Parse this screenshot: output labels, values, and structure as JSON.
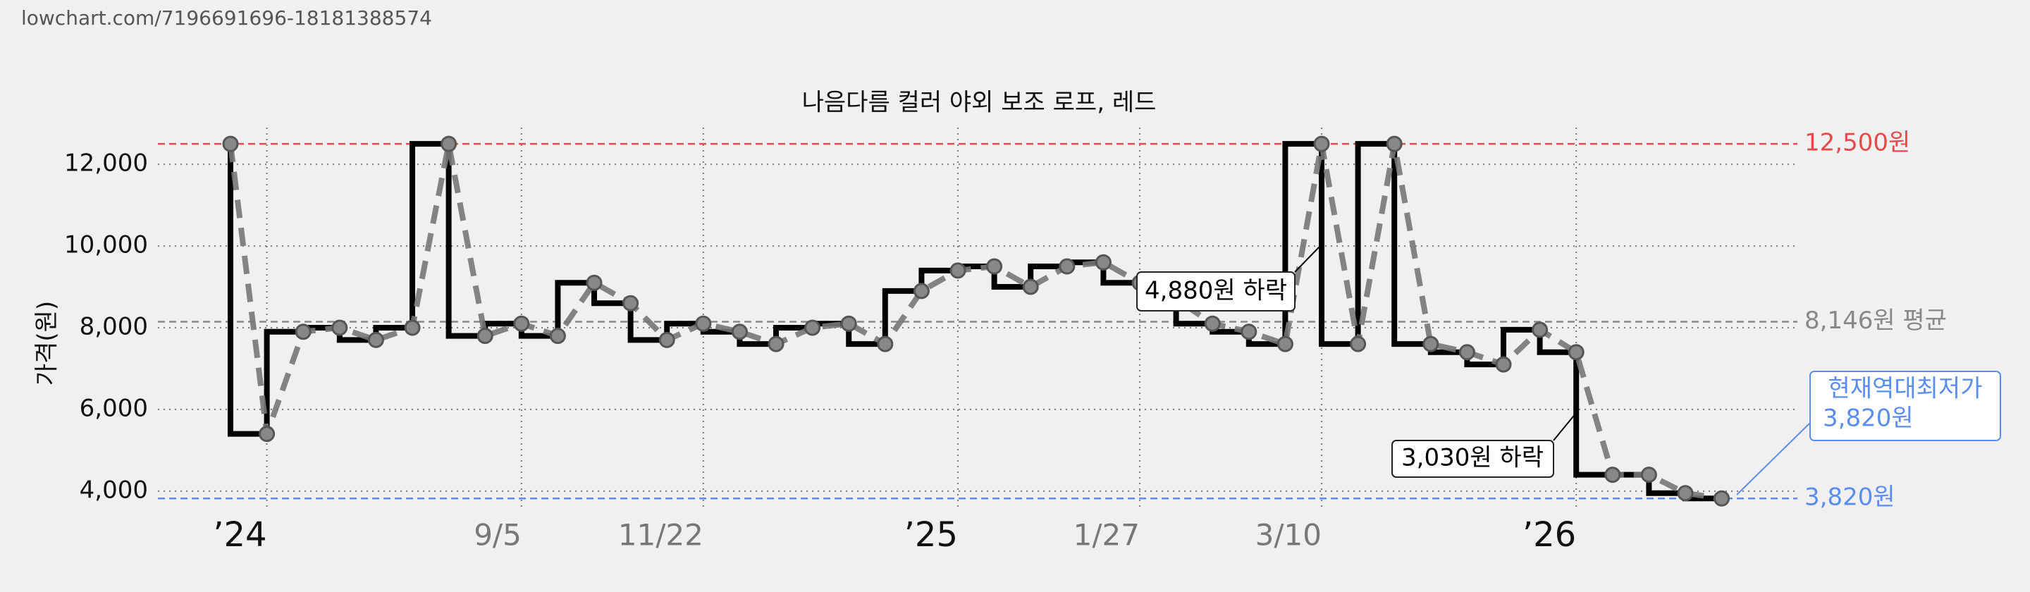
{
  "url": "lowchart.com/7196691696-18181388574",
  "chart_data": {
    "type": "step",
    "title": "나음다름 컬러 야외 보조 로프, 레드",
    "y_label": "가격(원)",
    "categories": [
      null,
      "’24",
      null,
      null,
      null,
      null,
      null,
      null,
      "9/5",
      null,
      null,
      null,
      null,
      "11/22",
      null,
      null,
      null,
      null,
      null,
      null,
      "’25",
      null,
      null,
      null,
      null,
      "1/27",
      null,
      null,
      null,
      null,
      "3/10",
      null,
      null,
      null,
      null,
      null,
      null,
      "’26",
      null,
      null,
      null,
      null
    ],
    "series": [
      {
        "color": "#000000",
        "values": [
          12500,
          5400,
          7900,
          8000,
          7700,
          8000,
          12500,
          7800,
          8100,
          7800,
          9100,
          8600,
          7700,
          8100,
          7900,
          7600,
          8000,
          8100,
          7600,
          8900,
          9400,
          9500,
          9000,
          9500,
          9600,
          9100,
          8700,
          8100,
          7900,
          7600,
          12500,
          7600,
          12500,
          7600,
          7400,
          7100,
          7950,
          7400,
          4400,
          4400,
          3950,
          3820
        ]
      }
    ],
    "ylim": [
      3600,
      12900
    ],
    "yticks": [
      {
        "value": 4000,
        "label": "4,000"
      },
      {
        "value": 6000,
        "label": "6,000"
      },
      {
        "value": 8000,
        "label": "8,000"
      },
      {
        "value": 10000,
        "label": "10,000"
      },
      {
        "value": 12000,
        "label": "12,000"
      }
    ],
    "grid": true,
    "ref_lines": [
      {
        "value": 12500,
        "label": "12,500원",
        "color": "#e84a4a"
      },
      {
        "value": 8146,
        "label": "8,146원 평균",
        "color": "#888888"
      },
      {
        "value": 3820,
        "label": "3,820원",
        "color": "#5b8def"
      }
    ],
    "annotations": [
      {
        "text": "4,880원 하락"
      },
      {
        "text": "3,030원 하락"
      },
      {
        "text": [
          "현재역대최저가",
          "3,820원"
        ]
      }
    ]
  }
}
